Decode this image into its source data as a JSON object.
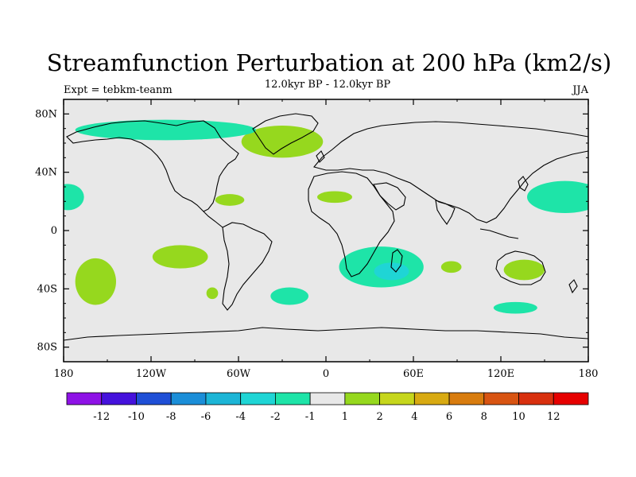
{
  "title": "Streamfunction Perturbation at 200 hPa (km2/s)",
  "left_label": "Expt = tebkm-teanm",
  "center_label": "12.0kyr BP - 12.0kyr BP",
  "right_label": "JJA",
  "lat_labels": [
    "80N",
    "40N",
    "0",
    "40S",
    "80S"
  ],
  "lon_labels": [
    "180",
    "120W",
    "60W",
    "0",
    "60E",
    "120E",
    "180"
  ],
  "colorbar": {
    "colors": [
      "#8e12e6",
      "#4512dc",
      "#1f4fd6",
      "#1b8ed8",
      "#1cb5d6",
      "#1fd5d5",
      "#1ee4a8",
      "#e8e8e8",
      "#96d81e",
      "#c6d61c",
      "#d8aa12",
      "#d87c0e",
      "#d85412",
      "#d8300e",
      "#e60000"
    ],
    "labels": [
      "-12",
      "-10",
      "-8",
      "-6",
      "-4",
      "-2",
      "-1",
      "1",
      "2",
      "4",
      "6",
      "8",
      "10",
      "12"
    ]
  },
  "colors": {
    "background": "#e8e8e8",
    "land_outline": "#000000",
    "positive": "#96d81e",
    "negative": "#1ee4a8",
    "strong_negative": "#1fd5d5"
  },
  "anomalies": [
    {
      "name": "north-atlantic-positive",
      "sign": "positive",
      "lon": -30,
      "lat": 61,
      "dlon": 28,
      "dlat": 11
    },
    {
      "name": "greenland-negative",
      "sign": "negative",
      "lon": -110,
      "lat": 69,
      "dlon": 62,
      "dlat": 7
    },
    {
      "name": "caribbean-positive",
      "sign": "positive",
      "lon": -66,
      "lat": 21,
      "dlon": 10,
      "dlat": 4
    },
    {
      "name": "north-africa-positive",
      "sign": "positive",
      "lon": 6,
      "lat": 23,
      "dlon": 12,
      "dlat": 4
    },
    {
      "name": "east-pacific-north-negative",
      "sign": "negative",
      "lon": -177,
      "lat": 23,
      "dlon": 11,
      "dlat": 9
    },
    {
      "name": "west-pacific-negative",
      "sign": "negative",
      "lon": 164,
      "lat": 23,
      "dlon": 26,
      "dlat": 11
    },
    {
      "name": "south-pacific-positive",
      "sign": "positive",
      "lon": -100,
      "lat": -18,
      "dlon": 19,
      "dlat": 8
    },
    {
      "name": "southeast-pacific-positive",
      "sign": "positive",
      "lon": -158,
      "lat": -35,
      "dlon": 14,
      "dlat": 16
    },
    {
      "name": "southern-africa-negative",
      "sign": "negative",
      "lon": 38,
      "lat": -25,
      "dlon": 29,
      "dlat": 14
    },
    {
      "name": "madagascar-negative-core",
      "sign": "strong_negative",
      "lon": 45,
      "lat": -28,
      "dlon": 12,
      "dlat": 6
    },
    {
      "name": "south-atlantic-negative",
      "sign": "negative",
      "lon": -25,
      "lat": -45,
      "dlon": 13,
      "dlat": 6
    },
    {
      "name": "south-atlantic-small-positive",
      "sign": "positive",
      "lon": -78,
      "lat": -43,
      "dlon": 4,
      "dlat": 4
    },
    {
      "name": "indian-ocean-positive",
      "sign": "positive",
      "lon": 86,
      "lat": -25,
      "dlon": 7,
      "dlat": 4
    },
    {
      "name": "australia-positive",
      "sign": "positive",
      "lon": 136,
      "lat": -27,
      "dlon": 14,
      "dlat": 7
    },
    {
      "name": "south-australia-negative",
      "sign": "negative",
      "lon": 130,
      "lat": -53,
      "dlon": 15,
      "dlat": 4
    }
  ]
}
